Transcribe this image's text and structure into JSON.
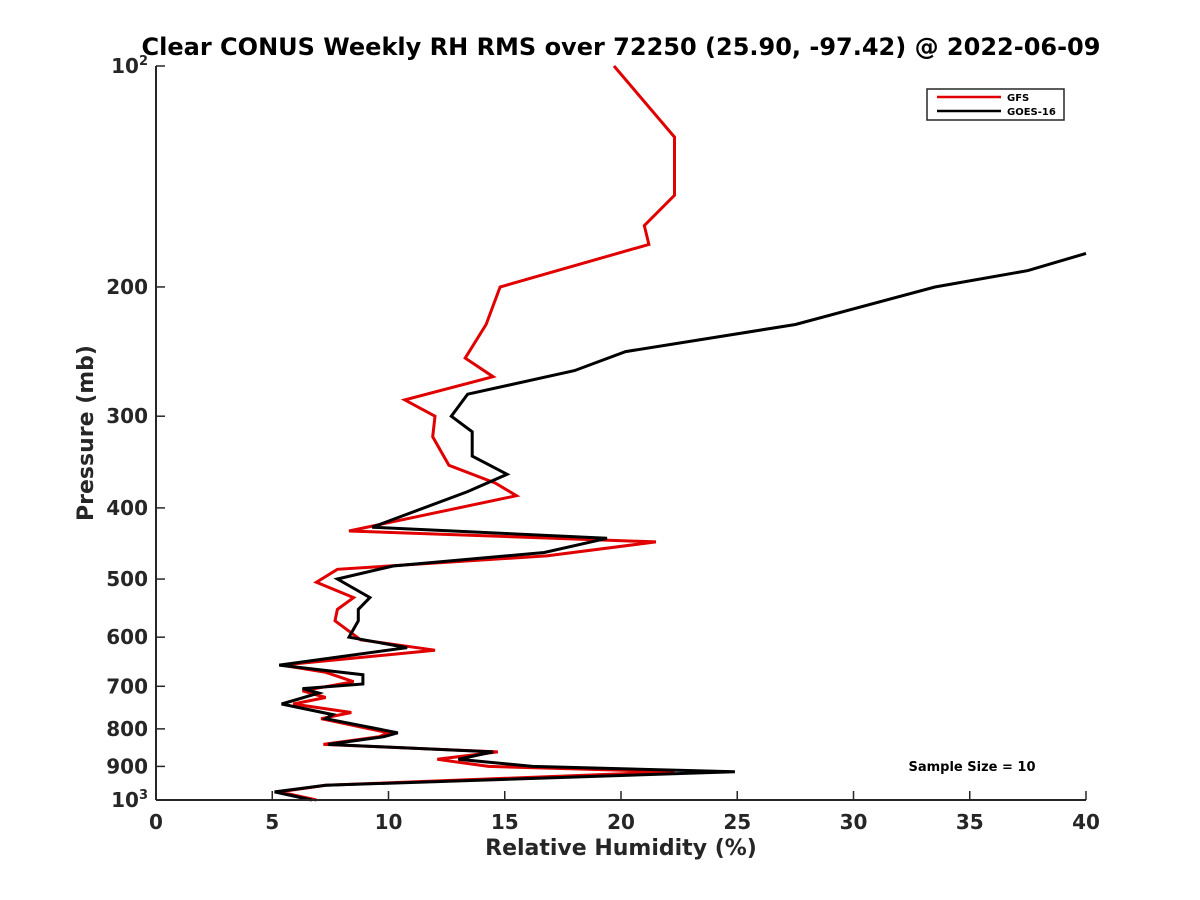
{
  "chart_data": {
    "type": "line",
    "title": "Clear CONUS Weekly RH RMS over 72250 (25.90, -97.42) @ 2022-06-09",
    "xlabel": "Relative Humidity (%)",
    "ylabel": "Pressure (mb)",
    "xlim": [
      0,
      40
    ],
    "ylim": [
      100,
      1000
    ],
    "y_scale": "log",
    "y_reversed": true,
    "x_ticks": [
      "0",
      "5",
      "10",
      "15",
      "20",
      "25",
      "30",
      "35",
      "40"
    ],
    "y_ticks": [
      {
        "value": 100,
        "base": "10",
        "exp": "2"
      },
      {
        "value": 200,
        "label": "200"
      },
      {
        "value": 300,
        "label": "300"
      },
      {
        "value": 400,
        "label": "400"
      },
      {
        "value": 500,
        "label": "500"
      },
      {
        "value": 600,
        "label": "600"
      },
      {
        "value": 700,
        "label": "700"
      },
      {
        "value": 800,
        "label": "800"
      },
      {
        "value": 900,
        "label": "900"
      },
      {
        "value": 1000,
        "base": "10",
        "exp": "3"
      }
    ],
    "legend_position": "top-right",
    "annotation": "Sample Size = 10",
    "series": [
      {
        "name": "GFS",
        "color": "#e00000",
        "points": [
          [
            19.7,
            100
          ],
          [
            22.3,
            125
          ],
          [
            22.3,
            150
          ],
          [
            21.0,
            165
          ],
          [
            21.2,
            175
          ],
          [
            14.8,
            200
          ],
          [
            14.2,
            225
          ],
          [
            13.3,
            250
          ],
          [
            14.5,
            265
          ],
          [
            10.7,
            285
          ],
          [
            12.0,
            300
          ],
          [
            11.9,
            320
          ],
          [
            12.6,
            350
          ],
          [
            14.6,
            370
          ],
          [
            15.5,
            385
          ],
          [
            8.3,
            430
          ],
          [
            21.5,
            445
          ],
          [
            16.8,
            465
          ],
          [
            7.8,
            485
          ],
          [
            6.9,
            505
          ],
          [
            8.5,
            530
          ],
          [
            7.8,
            550
          ],
          [
            7.7,
            570
          ],
          [
            8.8,
            605
          ],
          [
            12.0,
            625
          ],
          [
            5.4,
            655
          ],
          [
            7.3,
            670
          ],
          [
            8.5,
            690
          ],
          [
            6.3,
            710
          ],
          [
            7.3,
            725
          ],
          [
            5.9,
            740
          ],
          [
            8.4,
            760
          ],
          [
            7.1,
            775
          ],
          [
            10.0,
            810
          ],
          [
            9.6,
            820
          ],
          [
            7.2,
            840
          ],
          [
            14.7,
            860
          ],
          [
            12.1,
            880
          ],
          [
            14.3,
            900
          ],
          [
            22.3,
            915
          ],
          [
            7.3,
            955
          ],
          [
            5.3,
            975
          ],
          [
            6.9,
            1000
          ]
        ]
      },
      {
        "name": "GOES-16",
        "color": "#000000",
        "points": [
          [
            40.0,
            180
          ],
          [
            37.5,
            190
          ],
          [
            33.5,
            200
          ],
          [
            27.5,
            225
          ],
          [
            20.2,
            245
          ],
          [
            18.0,
            260
          ],
          [
            13.4,
            280
          ],
          [
            12.7,
            300
          ],
          [
            13.6,
            315
          ],
          [
            13.6,
            340
          ],
          [
            15.1,
            360
          ],
          [
            13.4,
            380
          ],
          [
            9.3,
            425
          ],
          [
            19.4,
            440
          ],
          [
            16.7,
            460
          ],
          [
            10.2,
            480
          ],
          [
            7.8,
            500
          ],
          [
            9.2,
            530
          ],
          [
            8.7,
            550
          ],
          [
            8.7,
            570
          ],
          [
            8.3,
            600
          ],
          [
            10.8,
            620
          ],
          [
            5.3,
            655
          ],
          [
            8.9,
            675
          ],
          [
            8.9,
            695
          ],
          [
            6.3,
            705
          ],
          [
            7.0,
            715
          ],
          [
            5.4,
            740
          ],
          [
            7.6,
            765
          ],
          [
            7.3,
            775
          ],
          [
            10.4,
            810
          ],
          [
            9.8,
            820
          ],
          [
            7.4,
            840
          ],
          [
            14.5,
            860
          ],
          [
            13.0,
            880
          ],
          [
            16.2,
            900
          ],
          [
            24.9,
            915
          ],
          [
            7.3,
            955
          ],
          [
            5.1,
            975
          ],
          [
            6.7,
            1000
          ]
        ]
      }
    ]
  }
}
